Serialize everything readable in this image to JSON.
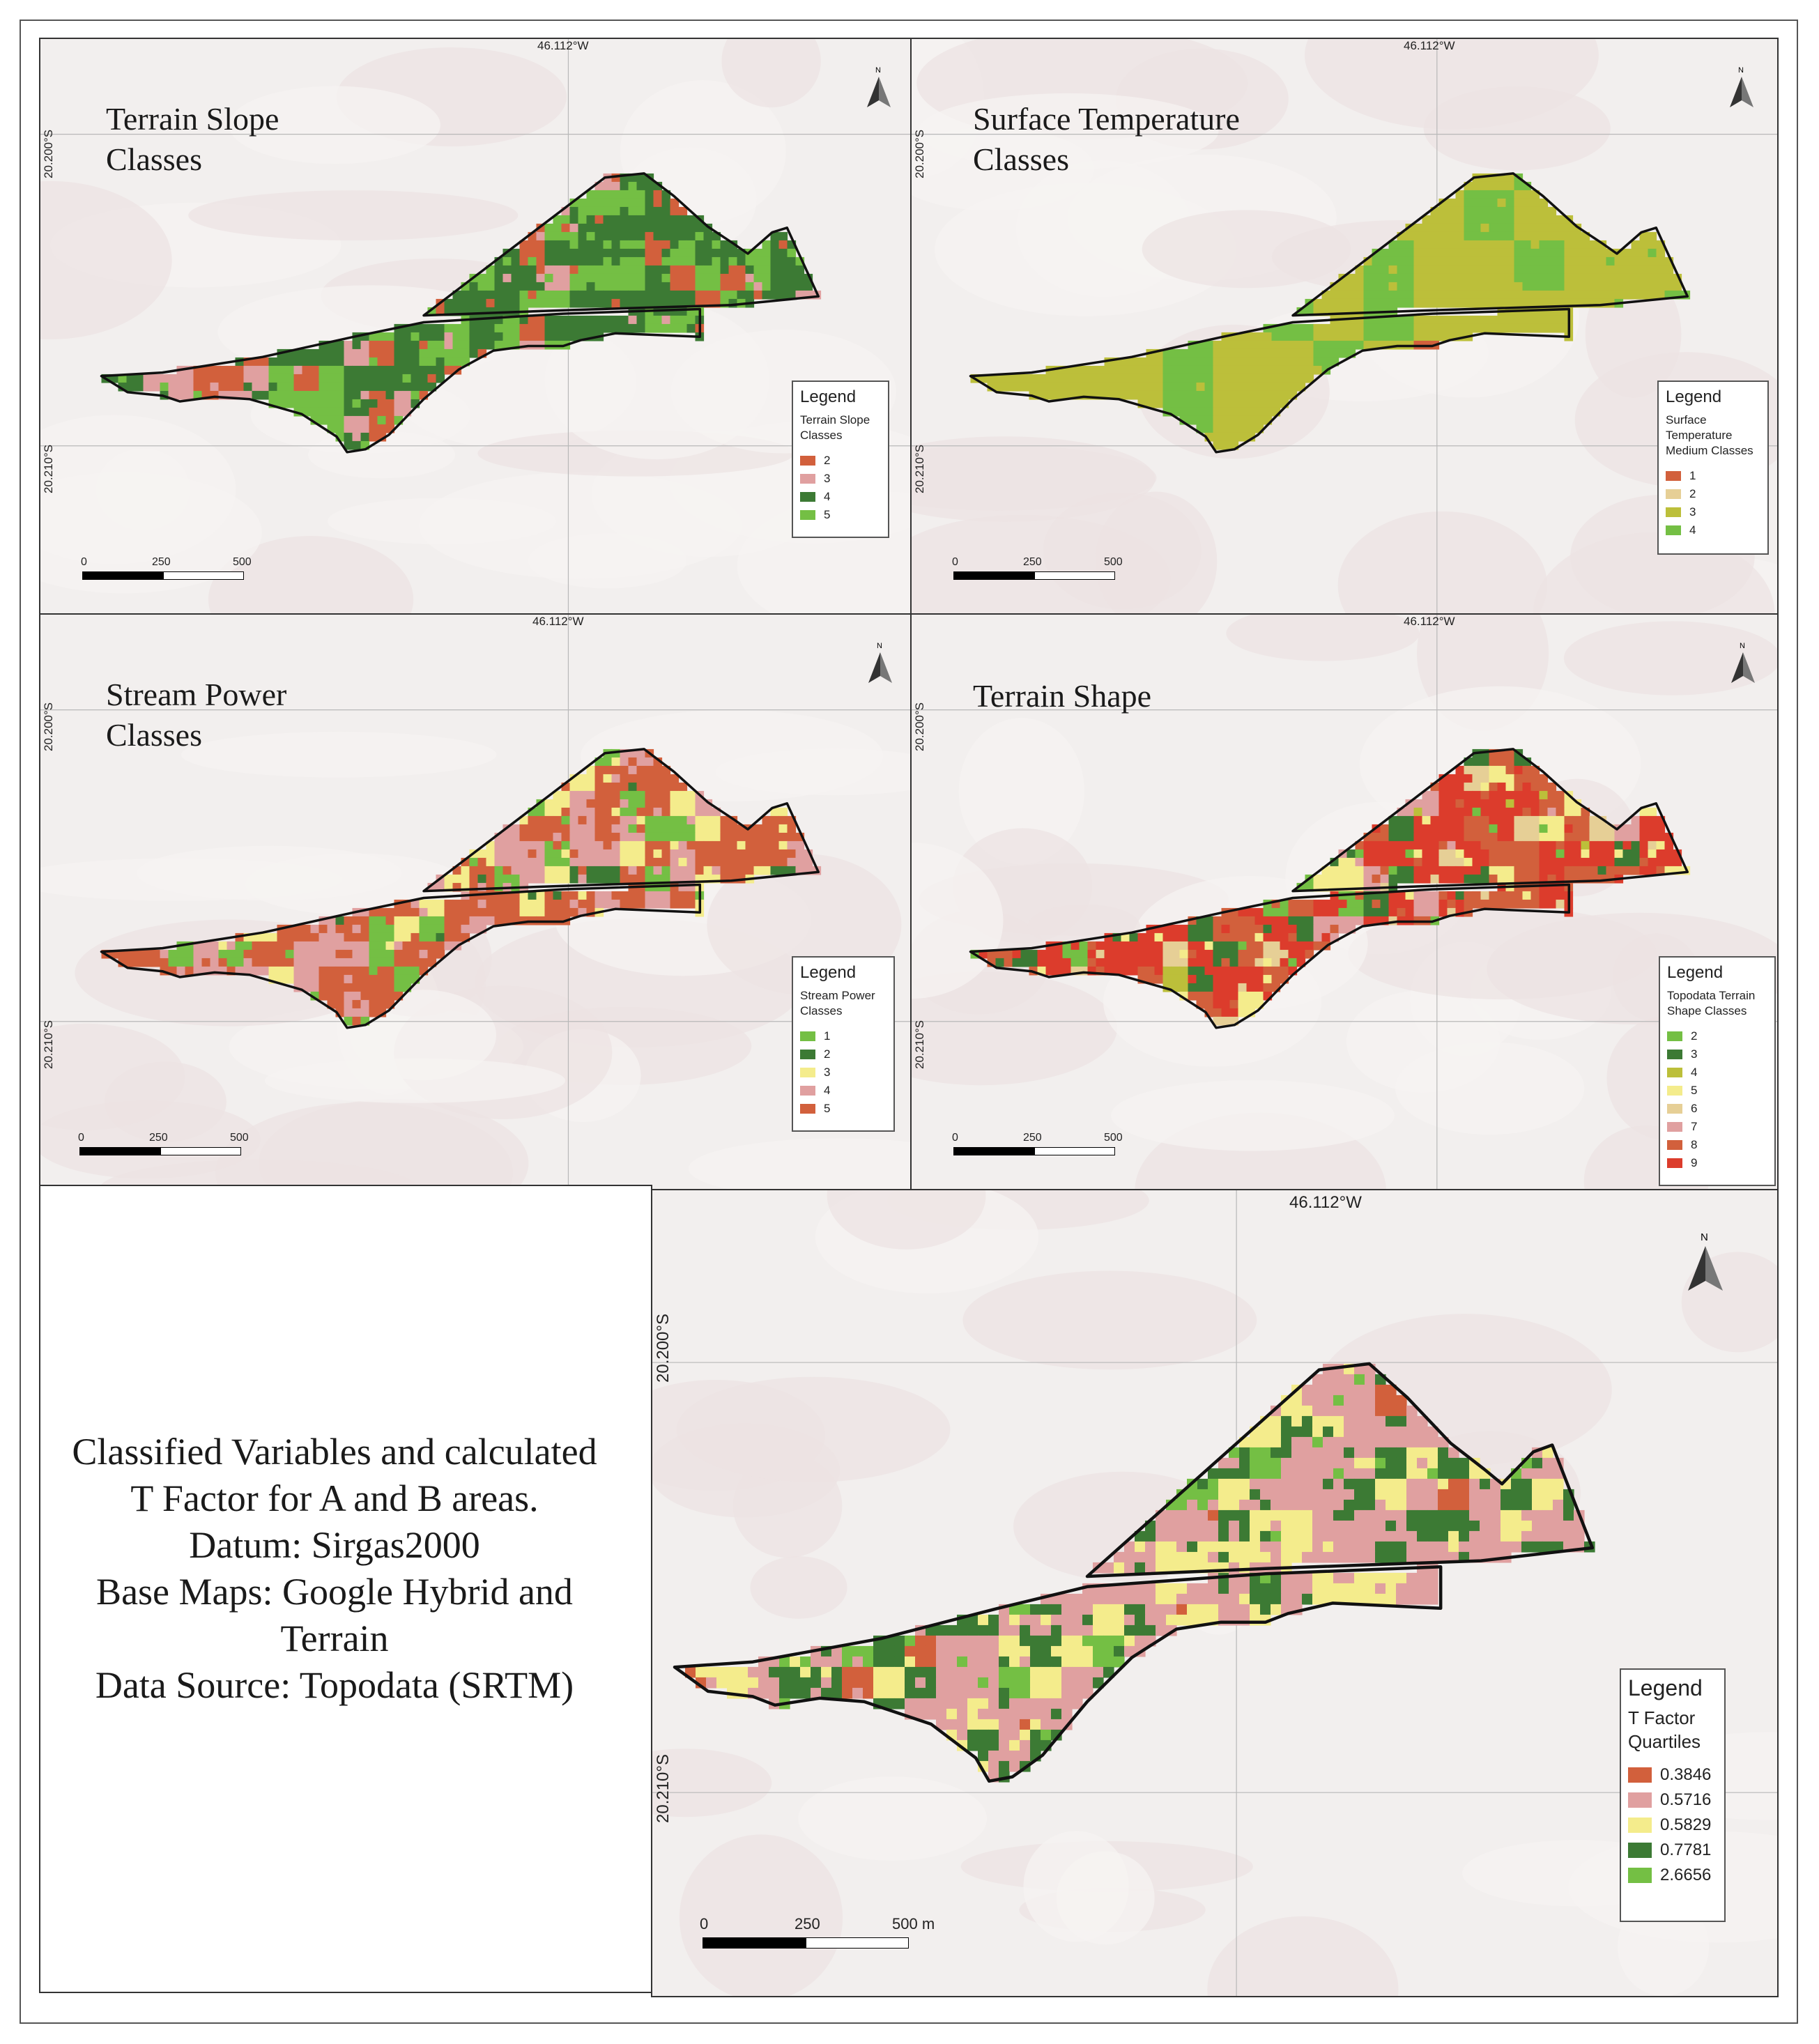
{
  "caption": {
    "lines": [
      "Classified Variables and calculated",
      "T Factor for A and B areas.",
      "Datum: Sirgas2000",
      "Base Maps: Google Hybrid and",
      "Terrain",
      "Data Source: Topodata (SRTM)"
    ]
  },
  "common": {
    "lon_label": "46.112°W",
    "lat_top": "20.200°S",
    "lat_bottom": "20.210°S",
    "north": "N",
    "scale": [
      "0",
      "250",
      "500 m"
    ],
    "legend_title": "Legend"
  },
  "panels": [
    {
      "title": "Terrain Slope\nClasses",
      "legend_subtitle": "Terrain Slope\nClasses",
      "legend_items": [
        {
          "label": "2",
          "color": "#d2603c"
        },
        {
          "label": "3",
          "color": "#e0a0a0"
        },
        {
          "label": "4",
          "color": "#3c7a34"
        },
        {
          "label": "5",
          "color": "#74bf44"
        }
      ]
    },
    {
      "title": "Surface Temperature\nClasses",
      "legend_subtitle": "Surface\nTemperature\nMedium Classes",
      "legend_items": [
        {
          "label": "1",
          "color": "#d2603c"
        },
        {
          "label": "2",
          "color": "#e6cf96"
        },
        {
          "label": "3",
          "color": "#bcbf3a"
        },
        {
          "label": "4",
          "color": "#74bf44"
        }
      ]
    },
    {
      "title": "Stream Power\nClasses",
      "legend_subtitle": "Stream Power\nClasses",
      "legend_items": [
        {
          "label": "1",
          "color": "#74bf44"
        },
        {
          "label": "2",
          "color": "#3c7a34"
        },
        {
          "label": "3",
          "color": "#f4ec8c"
        },
        {
          "label": "4",
          "color": "#e0a0a0"
        },
        {
          "label": "5",
          "color": "#d2603c"
        }
      ]
    },
    {
      "title": "Terrain Shape",
      "legend_subtitle": "Topodata Terrain\nShape Classes",
      "legend_items": [
        {
          "label": "2",
          "color": "#74bf44"
        },
        {
          "label": "3",
          "color": "#3c7a34"
        },
        {
          "label": "4",
          "color": "#bcbf3a"
        },
        {
          "label": "5",
          "color": "#f4ec8c"
        },
        {
          "label": "6",
          "color": "#e6cf96"
        },
        {
          "label": "7",
          "color": "#e0a0a0"
        },
        {
          "label": "8",
          "color": "#d2603c"
        },
        {
          "label": "9",
          "color": "#dc3c2c"
        }
      ]
    },
    {
      "title": "",
      "legend_subtitle": "T Factor\nQuartiles",
      "legend_items": [
        {
          "label": "0.3846",
          "color": "#d2603c"
        },
        {
          "label": "0.5716",
          "color": "#e0a0a0"
        },
        {
          "label": "0.5829",
          "color": "#f4ec8c"
        },
        {
          "label": "0.7781",
          "color": "#3c7a34"
        },
        {
          "label": "2.6656",
          "color": "#74bf44"
        }
      ]
    }
  ]
}
